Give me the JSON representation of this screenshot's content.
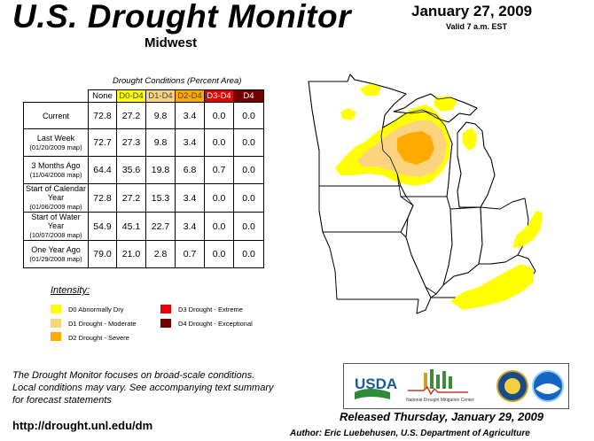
{
  "header": {
    "title": "U.S. Drought Monitor",
    "region": "Midwest",
    "date": "January 27, 2009",
    "valid": "Valid 7 a.m. EST"
  },
  "table": {
    "caption": "Drought Conditions (Percent Area)",
    "columns": [
      "None",
      "D0-D4",
      "D1-D4",
      "D2-D4",
      "D3-D4",
      "D4"
    ],
    "column_colors": [
      "#ffffff",
      "#ffff00",
      "#fcd37f",
      "#ffaa00",
      "#e60000",
      "#730000"
    ],
    "rows": [
      {
        "label": "Current",
        "sub": "",
        "values": [
          "72.8",
          "27.2",
          "9.8",
          "3.4",
          "0.0",
          "0.0"
        ]
      },
      {
        "label": "Last Week",
        "sub": "(01/20/2009 map)",
        "values": [
          "72.7",
          "27.3",
          "9.8",
          "3.4",
          "0.0",
          "0.0"
        ]
      },
      {
        "label": "3 Months Ago",
        "sub": "(11/04/2008 map)",
        "values": [
          "64.4",
          "35.6",
          "19.8",
          "6.8",
          "0.7",
          "0.0"
        ]
      },
      {
        "label": "Start of Calendar Year",
        "sub": "(01/06/2009 map)",
        "values": [
          "72.8",
          "27.2",
          "15.3",
          "3.4",
          "0.0",
          "0.0"
        ]
      },
      {
        "label": "Start of Water Year",
        "sub": "(10/07/2008 map)",
        "values": [
          "54.9",
          "45.1",
          "22.7",
          "3.4",
          "0.0",
          "0.0"
        ]
      },
      {
        "label": "One Year Ago",
        "sub": "(01/29/2008 map)",
        "values": [
          "79.0",
          "21.0",
          "2.8",
          "0.7",
          "0.0",
          "0.0"
        ]
      }
    ]
  },
  "legend": {
    "title": "Intensity:",
    "items": [
      {
        "label": "D0 Abnormally Dry",
        "color": "#ffff00"
      },
      {
        "label": "D1 Drought - Moderate",
        "color": "#fcd37f"
      },
      {
        "label": "D2 Drought - Severe",
        "color": "#ffaa00"
      },
      {
        "label": "D3 Drought - Extreme",
        "color": "#e60000"
      },
      {
        "label": "D4 Drought - Exceptional",
        "color": "#730000"
      }
    ]
  },
  "footer": {
    "note_lines": [
      "The Drought Monitor focuses on broad-scale conditions.",
      "Local conditions may vary. See accompanying text summary",
      "for forecast statements"
    ],
    "url": "http://drought.unl.edu/dm",
    "released": "Released Thursday, January 29, 2009",
    "author": "Author: Eric Luebehusen, U.S. Department of Agriculture"
  },
  "logos": {
    "usda": "USDA",
    "ndmc": "National Drought Mitigation Center"
  }
}
